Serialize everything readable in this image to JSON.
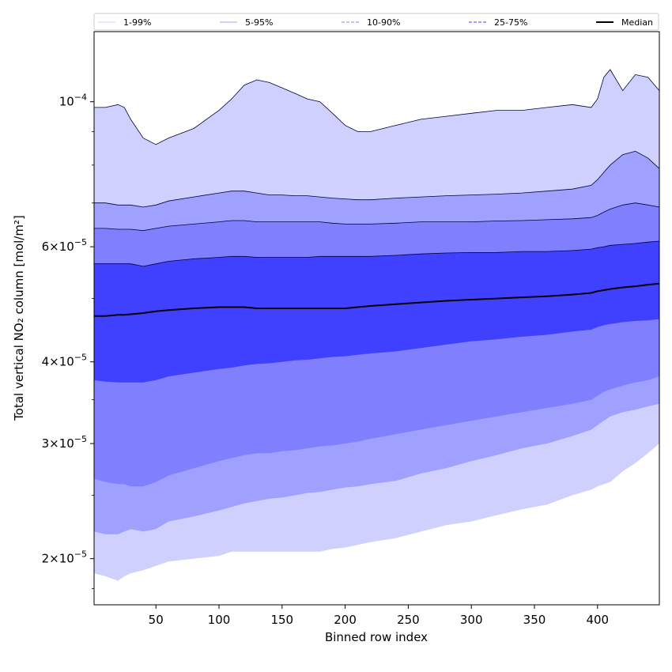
{
  "chart_data": {
    "type": "area",
    "xlabel": "Binned row index",
    "ylabel": "Total vertical NO₂ column [mol/m²]",
    "xlim": [
      1,
      449
    ],
    "ylim": [
      1.7e-05,
      0.000128
    ],
    "yscale": "log",
    "x_ticks": [
      50,
      100,
      150,
      200,
      250,
      300,
      350,
      400
    ],
    "x_tick_labels": [
      "50",
      "100",
      "150",
      "200",
      "250",
      "300",
      "350",
      "400"
    ],
    "y_ticks": [
      {
        "value": 2e-05,
        "mantissa": "2",
        "exponent": "−5"
      },
      {
        "value": 3e-05,
        "mantissa": "3",
        "exponent": "−5"
      },
      {
        "value": 4e-05,
        "mantissa": "4",
        "exponent": "−5"
      },
      {
        "value": 6e-05,
        "mantissa": "6",
        "exponent": "−5"
      },
      {
        "value": 0.0001,
        "mantissa": "",
        "exponent": "−4"
      }
    ],
    "legend_position": "top",
    "legend": [
      {
        "label": "1-99%",
        "color": "#d0d0ff",
        "style": "solid"
      },
      {
        "label": "5-95%",
        "color": "#a0a0ff",
        "style": "solid"
      },
      {
        "label": "10-90%",
        "color": "#8080ff",
        "style": "dashed"
      },
      {
        "label": "25-75%",
        "color": "#4040ff",
        "style": "dashed"
      },
      {
        "label": "Median",
        "color": "#000000",
        "style": "solid"
      }
    ],
    "x": [
      1,
      10,
      20,
      25,
      30,
      40,
      50,
      60,
      80,
      100,
      110,
      120,
      130,
      140,
      150,
      160,
      170,
      180,
      190,
      200,
      210,
      220,
      240,
      260,
      280,
      300,
      320,
      340,
      360,
      380,
      395,
      400,
      405,
      410,
      420,
      430,
      440,
      449
    ],
    "series": [
      {
        "name": "1-99%",
        "color": "#d0d0ff",
        "lower": [
          1.9e-05,
          1.88e-05,
          1.85e-05,
          1.88e-05,
          1.9e-05,
          1.92e-05,
          1.95e-05,
          1.98e-05,
          2e-05,
          2.02e-05,
          2.05e-05,
          2.05e-05,
          2.05e-05,
          2.05e-05,
          2.05e-05,
          2.05e-05,
          2.05e-05,
          2.05e-05,
          2.07e-05,
          2.08e-05,
          2.1e-05,
          2.12e-05,
          2.15e-05,
          2.2e-05,
          2.25e-05,
          2.28e-05,
          2.33e-05,
          2.38e-05,
          2.42e-05,
          2.5e-05,
          2.55e-05,
          2.58e-05,
          2.6e-05,
          2.62e-05,
          2.72e-05,
          2.8e-05,
          2.9e-05,
          3e-05
        ],
        "upper": [
          9.8e-05,
          9.8e-05,
          9.9e-05,
          9.8e-05,
          9.4e-05,
          8.8e-05,
          8.6e-05,
          8.8e-05,
          9.1e-05,
          9.7e-05,
          0.000101,
          0.000106,
          0.000108,
          0.000107,
          0.000105,
          0.000103,
          0.000101,
          0.0001,
          9.6e-05,
          9.2e-05,
          9e-05,
          9e-05,
          9.2e-05,
          9.4e-05,
          9.5e-05,
          9.6e-05,
          9.7e-05,
          9.7e-05,
          9.8e-05,
          9.9e-05,
          9.8e-05,
          0.000101,
          0.000109,
          0.000112,
          0.000104,
          0.00011,
          0.000109,
          0.000104
        ]
      },
      {
        "name": "5-95%",
        "color": "#a0a0ff",
        "lower": [
          2.2e-05,
          2.18e-05,
          2.18e-05,
          2.2e-05,
          2.22e-05,
          2.2e-05,
          2.22e-05,
          2.28e-05,
          2.32e-05,
          2.37e-05,
          2.4e-05,
          2.43e-05,
          2.45e-05,
          2.47e-05,
          2.48e-05,
          2.5e-05,
          2.52e-05,
          2.53e-05,
          2.55e-05,
          2.57e-05,
          2.58e-05,
          2.6e-05,
          2.63e-05,
          2.7e-05,
          2.75e-05,
          2.82e-05,
          2.88e-05,
          2.95e-05,
          3e-05,
          3.08e-05,
          3.15e-05,
          3.2e-05,
          3.25e-05,
          3.3e-05,
          3.35e-05,
          3.38e-05,
          3.42e-05,
          3.45e-05
        ],
        "upper": [
          7e-05,
          7e-05,
          6.95e-05,
          6.95e-05,
          6.95e-05,
          6.9e-05,
          6.95e-05,
          7.05e-05,
          7.15e-05,
          7.25e-05,
          7.3e-05,
          7.3e-05,
          7.25e-05,
          7.2e-05,
          7.2e-05,
          7.18e-05,
          7.18e-05,
          7.15e-05,
          7.12e-05,
          7.1e-05,
          7.08e-05,
          7.08e-05,
          7.12e-05,
          7.15e-05,
          7.18e-05,
          7.2e-05,
          7.22e-05,
          7.25e-05,
          7.3e-05,
          7.35e-05,
          7.45e-05,
          7.6e-05,
          7.8e-05,
          8e-05,
          8.3e-05,
          8.4e-05,
          8.2e-05,
          7.9e-05
        ]
      },
      {
        "name": "10-90%",
        "color": "#8080ff",
        "lower": [
          2.65e-05,
          2.62e-05,
          2.6e-05,
          2.6e-05,
          2.58e-05,
          2.58e-05,
          2.62e-05,
          2.68e-05,
          2.75e-05,
          2.82e-05,
          2.85e-05,
          2.88e-05,
          2.9e-05,
          2.9e-05,
          2.92e-05,
          2.93e-05,
          2.95e-05,
          2.97e-05,
          2.98e-05,
          3e-05,
          3.02e-05,
          3.05e-05,
          3.1e-05,
          3.15e-05,
          3.2e-05,
          3.25e-05,
          3.3e-05,
          3.35e-05,
          3.4e-05,
          3.45e-05,
          3.5e-05,
          3.55e-05,
          3.6e-05,
          3.63e-05,
          3.68e-05,
          3.72e-05,
          3.75e-05,
          3.8e-05
        ],
        "upper": [
          6.4e-05,
          6.4e-05,
          6.38e-05,
          6.38e-05,
          6.38e-05,
          6.35e-05,
          6.4e-05,
          6.45e-05,
          6.5e-05,
          6.55e-05,
          6.58e-05,
          6.58e-05,
          6.55e-05,
          6.55e-05,
          6.55e-05,
          6.55e-05,
          6.55e-05,
          6.55e-05,
          6.52e-05,
          6.5e-05,
          6.5e-05,
          6.5e-05,
          6.52e-05,
          6.55e-05,
          6.55e-05,
          6.55e-05,
          6.57e-05,
          6.58e-05,
          6.6e-05,
          6.62e-05,
          6.65e-05,
          6.7e-05,
          6.78e-05,
          6.85e-05,
          6.95e-05,
          7e-05,
          6.95e-05,
          6.9e-05
        ]
      },
      {
        "name": "25-75%",
        "color": "#4040ff",
        "lower": [
          3.75e-05,
          3.73e-05,
          3.72e-05,
          3.72e-05,
          3.72e-05,
          3.72e-05,
          3.75e-05,
          3.8e-05,
          3.85e-05,
          3.9e-05,
          3.92e-05,
          3.95e-05,
          3.97e-05,
          3.98e-05,
          4e-05,
          4.02e-05,
          4.03e-05,
          4.05e-05,
          4.07e-05,
          4.08e-05,
          4.1e-05,
          4.12e-05,
          4.15e-05,
          4.2e-05,
          4.25e-05,
          4.3e-05,
          4.33e-05,
          4.37e-05,
          4.4e-05,
          4.45e-05,
          4.48e-05,
          4.52e-05,
          4.55e-05,
          4.57e-05,
          4.6e-05,
          4.62e-05,
          4.63e-05,
          4.65e-05
        ],
        "upper": [
          5.65e-05,
          5.65e-05,
          5.65e-05,
          5.65e-05,
          5.65e-05,
          5.6e-05,
          5.65e-05,
          5.7e-05,
          5.75e-05,
          5.78e-05,
          5.8e-05,
          5.8e-05,
          5.78e-05,
          5.78e-05,
          5.78e-05,
          5.78e-05,
          5.78e-05,
          5.8e-05,
          5.8e-05,
          5.8e-05,
          5.8e-05,
          5.8e-05,
          5.82e-05,
          5.85e-05,
          5.87e-05,
          5.88e-05,
          5.88e-05,
          5.9e-05,
          5.9e-05,
          5.92e-05,
          5.95e-05,
          5.98e-05,
          6e-05,
          6.03e-05,
          6.05e-05,
          6.07e-05,
          6.1e-05,
          6.12e-05
        ]
      }
    ],
    "median": {
      "name": "Median",
      "color": "#000000",
      "values": [
        4.7e-05,
        4.7e-05,
        4.72e-05,
        4.72e-05,
        4.73e-05,
        4.75e-05,
        4.78e-05,
        4.8e-05,
        4.83e-05,
        4.85e-05,
        4.85e-05,
        4.85e-05,
        4.83e-05,
        4.83e-05,
        4.83e-05,
        4.83e-05,
        4.83e-05,
        4.83e-05,
        4.83e-05,
        4.83e-05,
        4.85e-05,
        4.87e-05,
        4.9e-05,
        4.93e-05,
        4.96e-05,
        4.98e-05,
        5e-05,
        5.02e-05,
        5.04e-05,
        5.07e-05,
        5.1e-05,
        5.13e-05,
        5.15e-05,
        5.17e-05,
        5.2e-05,
        5.22e-05,
        5.25e-05,
        5.27e-05
      ]
    }
  }
}
